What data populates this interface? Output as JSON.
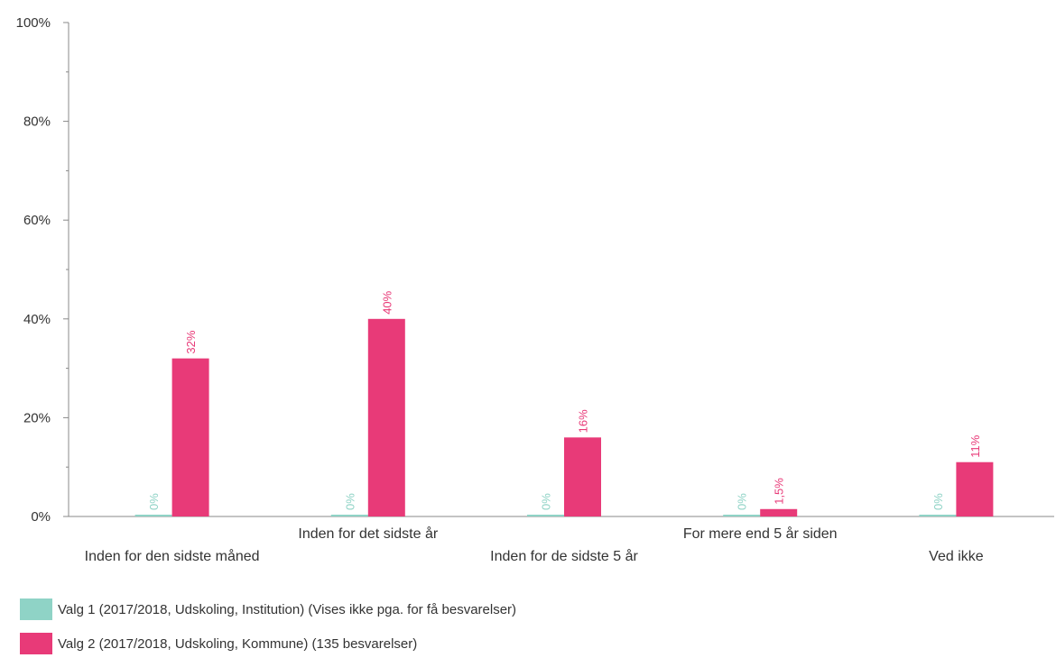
{
  "chart_data": {
    "type": "bar",
    "categories": [
      "Inden for den sidste måned",
      "Inden for det sidste år",
      "Inden for de sidste 5 år",
      "For mere end 5 år siden",
      "Ved ikke"
    ],
    "series": [
      {
        "name": "Valg 1 (2017/2018, Udskoling, Institution) (Vises ikke pga. for få besvarelser)",
        "color": "#8fd3c6",
        "values": [
          0,
          0,
          0,
          0,
          0
        ],
        "labels": [
          "0%",
          "0%",
          "0%",
          "0%",
          "0%"
        ]
      },
      {
        "name": "Valg 2 (2017/2018, Udskoling, Kommune) (135 besvarelser)",
        "color": "#e83a78",
        "values": [
          32,
          40,
          16,
          1.5,
          11
        ],
        "labels": [
          "32%",
          "40%",
          "16%",
          "1,5%",
          "11%"
        ]
      }
    ],
    "yticks": [
      "0%",
      "20%",
      "40%",
      "60%",
      "80%",
      "100%"
    ],
    "ylim": [
      0,
      100
    ],
    "grid": false,
    "legend_position": "bottom"
  }
}
